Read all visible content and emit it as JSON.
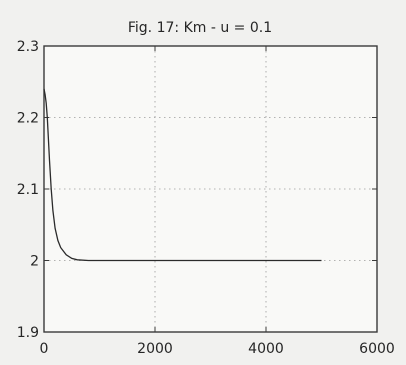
{
  "chart_data": {
    "type": "line",
    "title": "Fig. 17: Km - u = 0.1",
    "xlabel": "",
    "ylabel": "",
    "xlim": [
      0,
      6000
    ],
    "ylim": [
      1.9,
      2.3
    ],
    "xticks": [
      "0",
      "2000",
      "4000",
      "6000"
    ],
    "yticks": [
      "1.9",
      "2",
      "2.1",
      "2.2",
      "2.3"
    ],
    "grid": true,
    "series": [
      {
        "x": [
          0,
          20,
          40,
          60,
          80,
          100,
          130,
          160,
          200,
          250,
          300,
          400,
          500,
          600,
          800,
          1000,
          1500,
          2000,
          3000,
          4000,
          5000
        ],
        "y": [
          2.24,
          2.232,
          2.22,
          2.2,
          2.17,
          2.14,
          2.1,
          2.07,
          2.045,
          2.028,
          2.018,
          2.008,
          2.003,
          2.001,
          2.0,
          2.0,
          2.0,
          2.0,
          2.0,
          2.0,
          2.0
        ]
      }
    ]
  }
}
